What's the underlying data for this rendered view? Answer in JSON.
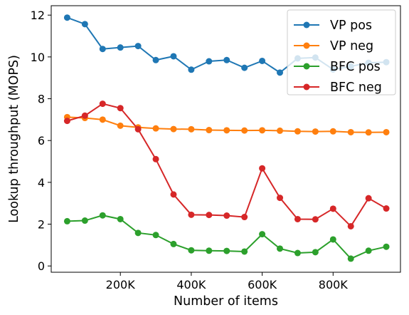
{
  "chart_data": {
    "type": "line",
    "xlabel": "Number of items",
    "ylabel": "Lookup throughput (MOPS)",
    "xlim": [
      5000,
      990000
    ],
    "ylim": [
      -0.3,
      12.45
    ],
    "x_ticks": [
      200000,
      400000,
      600000,
      800000
    ],
    "x_tick_labels": [
      "200K",
      "400K",
      "600K",
      "800K"
    ],
    "y_ticks": [
      0,
      2,
      4,
      6,
      8,
      10,
      12
    ],
    "y_tick_labels": [
      "0",
      "2",
      "4",
      "6",
      "8",
      "10",
      "12"
    ],
    "grid": false,
    "legend_position": "top-right",
    "x": [
      50000,
      100000,
      150000,
      200000,
      250000,
      300000,
      350000,
      400000,
      450000,
      500000,
      550000,
      600000,
      650000,
      700000,
      750000,
      800000,
      850000,
      900000,
      950000
    ],
    "series": [
      {
        "name": "VP pos",
        "color": "#1f77b4",
        "values": [
          11.88,
          11.57,
          10.38,
          10.45,
          10.52,
          9.85,
          10.03,
          9.39,
          9.79,
          9.85,
          9.48,
          9.81,
          9.25,
          9.93,
          9.97,
          9.4,
          9.55,
          9.72,
          9.75
        ]
      },
      {
        "name": "VP neg",
        "color": "#ff7f0e",
        "values": [
          7.12,
          7.08,
          7.0,
          6.71,
          6.63,
          6.58,
          6.55,
          6.54,
          6.5,
          6.49,
          6.48,
          6.49,
          6.47,
          6.44,
          6.43,
          6.44,
          6.4,
          6.39,
          6.4
        ]
      },
      {
        "name": "BFC pos",
        "color": "#2ca02c",
        "values": [
          2.14,
          2.17,
          2.42,
          2.24,
          1.58,
          1.48,
          1.05,
          0.75,
          0.73,
          0.72,
          0.69,
          1.52,
          0.83,
          0.62,
          0.66,
          1.27,
          0.35,
          0.73,
          0.92
        ]
      },
      {
        "name": "BFC neg",
        "color": "#d62728",
        "values": [
          6.94,
          7.19,
          7.76,
          7.55,
          6.54,
          5.11,
          3.42,
          2.45,
          2.44,
          2.41,
          2.34,
          4.67,
          3.26,
          2.24,
          2.23,
          2.74,
          1.9,
          3.24,
          2.75
        ]
      }
    ]
  }
}
